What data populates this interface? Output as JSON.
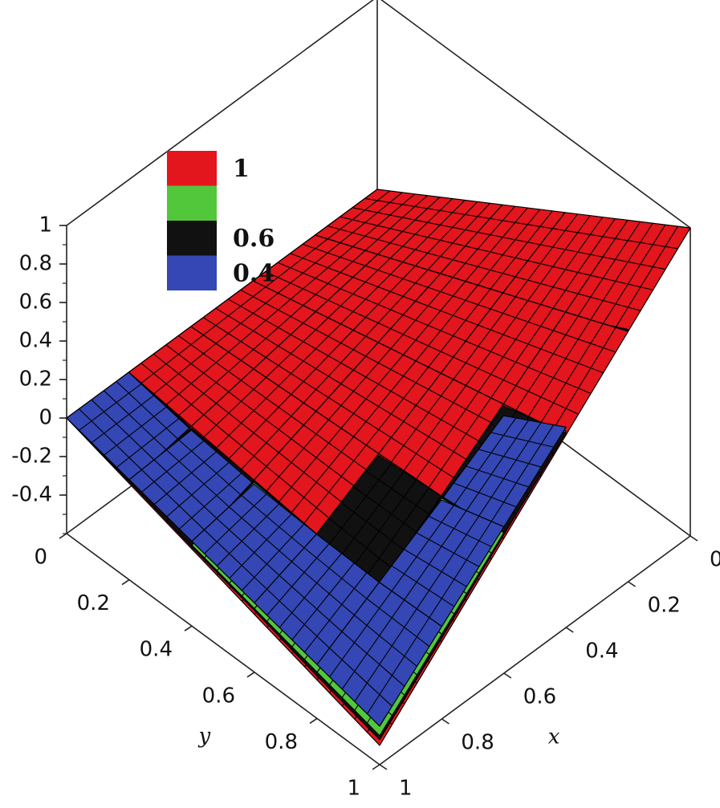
{
  "chart_data": {
    "type": "surface3d",
    "xlabel": "x",
    "ylabel": "y",
    "x": [
      0,
      0.2,
      0.4,
      0.6,
      0.8,
      1
    ],
    "y": [
      0,
      0.2,
      0.4,
      0.6,
      0.8,
      1
    ],
    "xlim": [
      0,
      1
    ],
    "ylim": [
      0,
      1
    ],
    "zlim": [
      -0.6,
      1
    ],
    "xticks": [
      0,
      0.2,
      0.4,
      0.6,
      0.8,
      1
    ],
    "yticks": [
      0,
      0.2,
      0.4,
      0.6,
      0.8,
      1
    ],
    "zticks": [
      1,
      0.8,
      0.6,
      0.4,
      0.2,
      0,
      -0.2,
      -0.4
    ],
    "mesh": true,
    "legend": "top-left",
    "series": [
      {
        "name": "1",
        "color": "#e3151d",
        "z": [
          [
            0,
            0,
            0,
            0,
            0,
            0
          ],
          [
            0.2,
            0.14,
            0.08,
            0.02,
            -0.04,
            -0.1
          ],
          [
            0.4,
            0.28,
            0.16,
            0.04,
            -0.08,
            -0.2
          ],
          [
            0.6,
            0.42,
            0.24,
            0.06,
            -0.12,
            -0.3
          ],
          [
            0.8,
            0.56,
            0.32,
            0.08,
            -0.16,
            -0.4
          ],
          [
            1,
            0.7,
            0.4,
            0.1,
            -0.2,
            -0.5
          ]
        ]
      },
      {
        "name": null,
        "color": "#52c73c",
        "z": [
          [
            0,
            0,
            0,
            0,
            0,
            0
          ],
          [
            0.09,
            0.05,
            0.02,
            -0.02,
            -0.05,
            -0.09
          ],
          [
            0.25,
            0.17,
            0.08,
            -0.01,
            -0.09,
            -0.18
          ],
          [
            0.47,
            0.32,
            0.17,
            0.02,
            -0.12,
            -0.27
          ],
          [
            0.72,
            0.5,
            0.29,
            0.07,
            -0.15,
            -0.36
          ],
          [
            1,
            0.71,
            0.42,
            0.13,
            -0.16,
            -0.45
          ]
        ]
      },
      {
        "name": "0.6",
        "color": "#111111",
        "z": [
          [
            0,
            0,
            0,
            0,
            0,
            0
          ],
          [
            0.14,
            0.1,
            0.05,
            0,
            -0.05,
            -0.09
          ],
          [
            0.33,
            0.23,
            0.13,
            0.02,
            -0.08,
            -0.19
          ],
          [
            0.54,
            0.38,
            0.21,
            0.05,
            -0.12,
            -0.28
          ],
          [
            0.77,
            0.54,
            0.31,
            0.08,
            -0.15,
            -0.38
          ],
          [
            1,
            0.71,
            0.41,
            0.12,
            -0.18,
            -0.47
          ]
        ]
      },
      {
        "name": "0.4",
        "color": "#3447b5",
        "z": [
          [
            0,
            0,
            0,
            0,
            0,
            0
          ],
          [
            0.04,
            0.02,
            -0.01,
            -0.03,
            -0.06,
            -0.08
          ],
          [
            0.16,
            0.1,
            0.03,
            -0.03,
            -0.1,
            -0.16
          ],
          [
            0.36,
            0.24,
            0.12,
            0,
            -0.12,
            -0.24
          ],
          [
            0.64,
            0.45,
            0.26,
            0.06,
            -0.13,
            -0.32
          ],
          [
            1,
            0.72,
            0.44,
            0.16,
            -0.12,
            -0.4
          ]
        ]
      }
    ]
  }
}
